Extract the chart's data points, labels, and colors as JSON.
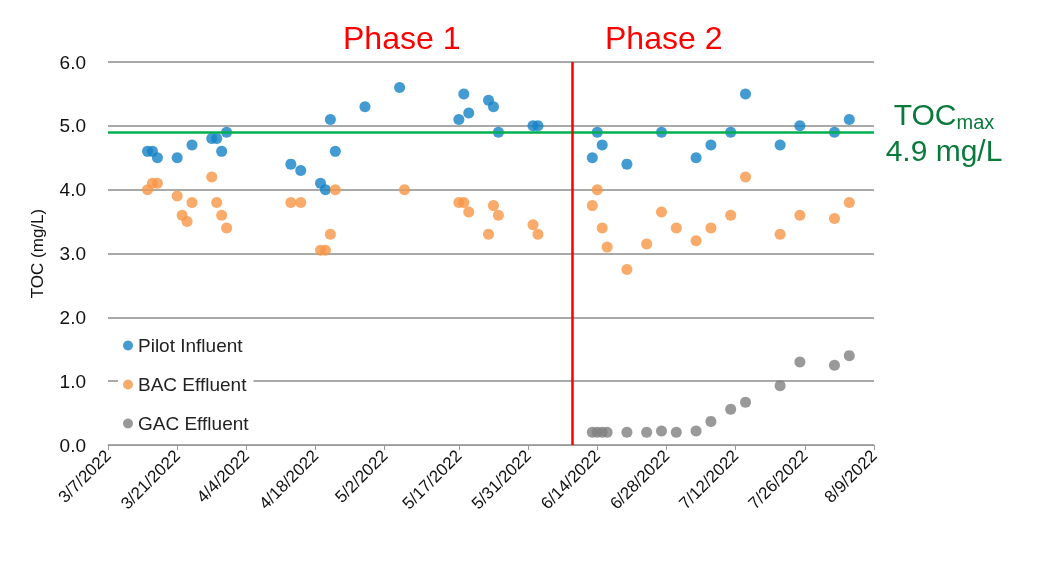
{
  "chart_data": {
    "type": "scatter",
    "ylabel": "TOC (mg/L)",
    "xlim": [
      "2022-03-07",
      "2022-08-09"
    ],
    "xticks": [
      {
        "value": "2022-03-07",
        "label": "3/7/2022"
      },
      {
        "value": "2022-03-21",
        "label": "3/21/2022"
      },
      {
        "value": "2022-04-04",
        "label": "4/4/2022"
      },
      {
        "value": "2022-04-18",
        "label": "4/18/2022"
      },
      {
        "value": "2022-05-02",
        "label": "5/2/2022"
      },
      {
        "value": "2022-05-17",
        "label": "5/17/2022"
      },
      {
        "value": "2022-05-31",
        "label": "5/31/2022"
      },
      {
        "value": "2022-06-14",
        "label": "6/14/2022"
      },
      {
        "value": "2022-06-28",
        "label": "6/28/2022"
      },
      {
        "value": "2022-07-12",
        "label": "7/12/2022"
      },
      {
        "value": "2022-07-26",
        "label": "7/26/2022"
      },
      {
        "value": "2022-08-09",
        "label": "8/9/2022"
      }
    ],
    "ylim": [
      0,
      6
    ],
    "yticks": [
      {
        "value": 0,
        "label": "0.0"
      },
      {
        "value": 1,
        "label": "1.0"
      },
      {
        "value": 2,
        "label": "2.0"
      },
      {
        "value": 3,
        "label": "3.0"
      },
      {
        "value": 4,
        "label": "4.0"
      },
      {
        "value": 5,
        "label": "5.0"
      },
      {
        "value": 6,
        "label": "6.0"
      }
    ],
    "grid": "y",
    "legend": "bottom left",
    "marker": "circle",
    "series": [
      {
        "name": "Pilot Influent",
        "color": "#1582c5",
        "x": [
          "2022-03-15",
          "2022-03-16",
          "2022-03-17",
          "2022-03-21",
          "2022-03-24",
          "2022-03-28",
          "2022-03-29",
          "2022-03-30",
          "2022-03-31",
          "2022-04-13",
          "2022-04-15",
          "2022-04-19",
          "2022-04-20",
          "2022-04-21",
          "2022-04-22",
          "2022-04-28",
          "2022-05-05",
          "2022-05-17",
          "2022-05-18",
          "2022-05-19",
          "2022-05-23",
          "2022-05-24",
          "2022-05-25",
          "2022-06-01",
          "2022-06-02",
          "2022-06-13",
          "2022-06-14",
          "2022-06-15",
          "2022-06-20",
          "2022-06-27",
          "2022-07-04",
          "2022-07-07",
          "2022-07-11",
          "2022-07-14",
          "2022-07-21",
          "2022-07-25",
          "2022-08-01",
          "2022-08-04"
        ],
        "values": [
          4.6,
          4.6,
          4.5,
          4.5,
          4.7,
          4.8,
          4.8,
          4.6,
          4.9,
          4.4,
          4.3,
          4.1,
          4.0,
          5.1,
          4.6,
          5.3,
          5.6,
          5.1,
          5.5,
          5.2,
          5.4,
          5.3,
          4.9,
          5.0,
          5.0,
          4.5,
          4.9,
          4.7,
          4.4,
          4.9,
          4.5,
          4.7,
          4.9,
          5.5,
          4.7,
          5.0,
          4.9,
          5.1
        ]
      },
      {
        "name": "BAC Effluent",
        "color": "#f79646",
        "x": [
          "2022-03-15",
          "2022-03-16",
          "2022-03-17",
          "2022-03-21",
          "2022-03-22",
          "2022-03-23",
          "2022-03-24",
          "2022-03-28",
          "2022-03-29",
          "2022-03-30",
          "2022-03-31",
          "2022-04-13",
          "2022-04-15",
          "2022-04-19",
          "2022-04-20",
          "2022-04-21",
          "2022-04-22",
          "2022-05-06",
          "2022-05-17",
          "2022-05-18",
          "2022-05-19",
          "2022-05-23",
          "2022-05-24",
          "2022-05-25",
          "2022-06-01",
          "2022-06-02",
          "2022-06-13",
          "2022-06-14",
          "2022-06-15",
          "2022-06-16",
          "2022-06-20",
          "2022-06-24",
          "2022-06-27",
          "2022-06-30",
          "2022-07-04",
          "2022-07-07",
          "2022-07-11",
          "2022-07-14",
          "2022-07-21",
          "2022-07-25",
          "2022-08-01",
          "2022-08-04"
        ],
        "values": [
          4.0,
          4.1,
          4.1,
          3.9,
          3.6,
          3.5,
          3.8,
          4.2,
          3.8,
          3.6,
          3.4,
          3.8,
          3.8,
          3.05,
          3.05,
          3.3,
          4.0,
          4.0,
          3.8,
          3.8,
          3.65,
          3.3,
          3.75,
          3.6,
          3.45,
          3.3,
          3.75,
          4.0,
          3.4,
          3.1,
          2.75,
          3.15,
          3.65,
          3.4,
          3.2,
          3.4,
          3.6,
          4.2,
          3.3,
          3.6,
          3.55,
          3.8
        ]
      },
      {
        "name": "GAC Effluent",
        "color": "#808080",
        "x": [
          "2022-06-13",
          "2022-06-14",
          "2022-06-15",
          "2022-06-16",
          "2022-06-20",
          "2022-06-24",
          "2022-06-27",
          "2022-06-30",
          "2022-07-04",
          "2022-07-07",
          "2022-07-11",
          "2022-07-14",
          "2022-07-21",
          "2022-07-25",
          "2022-08-01",
          "2022-08-04"
        ],
        "values": [
          0.2,
          0.2,
          0.2,
          0.2,
          0.2,
          0.2,
          0.22,
          0.2,
          0.22,
          0.37,
          0.56,
          0.67,
          0.93,
          1.3,
          1.25,
          1.4
        ]
      }
    ],
    "ref_lines": [
      {
        "axis": "y",
        "value": 4.9,
        "label": "TOC$_{max}$\n4.9 mg/L",
        "color": "#00b050"
      },
      {
        "axis": "x",
        "value": "2022-06-09",
        "color": "#ff0000"
      }
    ],
    "annotations": [
      "Phase 1",
      "Phase 2"
    ]
  }
}
